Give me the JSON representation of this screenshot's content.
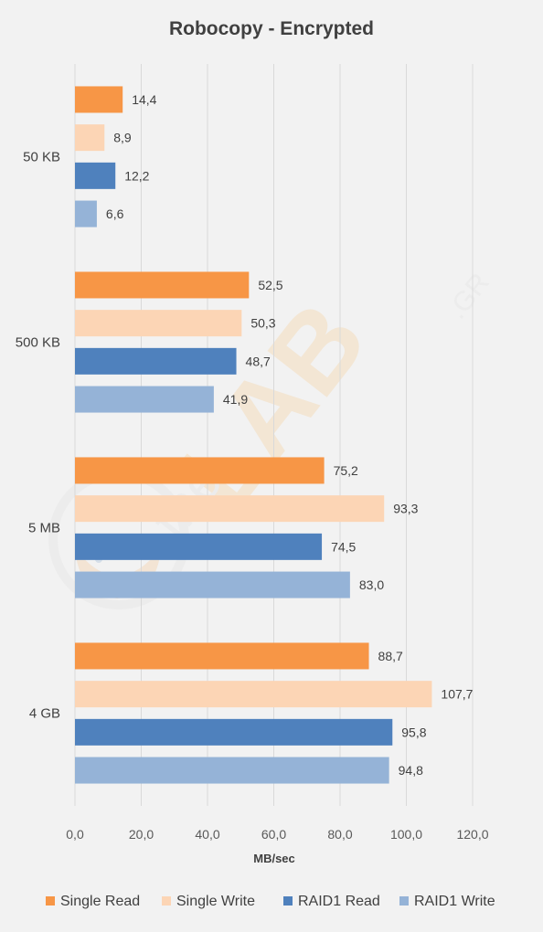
{
  "chart_data": {
    "type": "bar",
    "orientation": "horizontal",
    "title": "Robocopy - Encrypted",
    "xlabel": "MB/sec",
    "ylabel": "",
    "categories": [
      "50 KB",
      "500 KB",
      "5 MB",
      "4 GB"
    ],
    "series": [
      {
        "name": "Single Read",
        "color": "#f79646",
        "values": [
          14.4,
          52.5,
          75.2,
          88.7
        ]
      },
      {
        "name": "Single  Write",
        "color": "#fcd5b5",
        "values": [
          8.9,
          50.3,
          93.3,
          107.7
        ]
      },
      {
        "name": "RAID1 Read",
        "color": "#4f81bd",
        "values": [
          12.2,
          48.7,
          74.5,
          95.8
        ]
      },
      {
        "name": "RAID1 Write",
        "color": "#95b3d7",
        "values": [
          6.6,
          41.9,
          83.0,
          94.8
        ]
      }
    ],
    "xlim": [
      0,
      120
    ],
    "xticks": [
      0,
      20,
      40,
      60,
      80,
      100,
      120
    ],
    "xtick_labels": [
      "0,0",
      "20,0",
      "40,0",
      "60,0",
      "80,0",
      "100,0",
      "120,0"
    ],
    "value_labels": [
      [
        "14,4",
        "52,5",
        "75,2",
        "88,7"
      ],
      [
        "8,9",
        "50,3",
        "93,3",
        "107,7"
      ],
      [
        "12,2",
        "48,7",
        "74,5",
        "95,8"
      ],
      [
        "6,6",
        "41,9",
        "83,0",
        "94,8"
      ]
    ],
    "grid": "vertical",
    "legend_position": "bottom",
    "watermark": "theLAB.GR"
  }
}
